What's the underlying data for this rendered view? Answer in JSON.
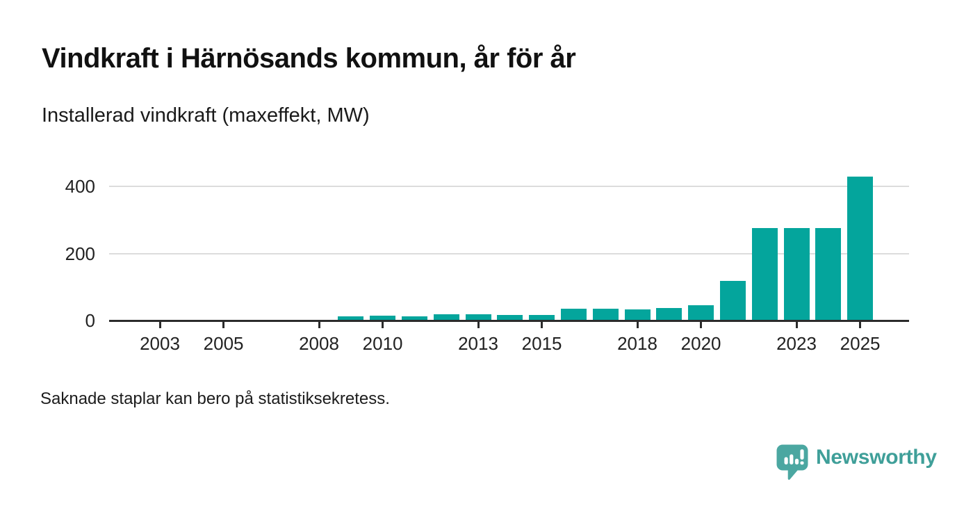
{
  "header": {
    "title": "Vindkraft i Härnösands kommun, år för år",
    "subtitle": "Installerad vindkraft (maxeffekt, MW)"
  },
  "chart_data": {
    "type": "bar",
    "title": "Vindkraft i Härnösands kommun, år för år",
    "subtitle": "Installerad vindkraft (maxeffekt, MW)",
    "unit": "MW",
    "bar_color": "#04a59c",
    "grid": "horizontal-only",
    "legend": "none",
    "x_range_years": [
      2002,
      2025
    ],
    "x_tick_years": [
      2003,
      2005,
      2008,
      2010,
      2013,
      2015,
      2018,
      2020,
      2023,
      2025
    ],
    "y_ticks": [
      0,
      200,
      400
    ],
    "ylim": [
      0,
      450
    ],
    "years_without_bars": [
      2002,
      2003,
      2004,
      2005,
      2006,
      2007,
      2008
    ],
    "series": [
      {
        "name": "Installerad vindkraft (maxeffekt, MW)",
        "points": [
          {
            "year": 2009,
            "value": 13
          },
          {
            "year": 2010,
            "value": 15
          },
          {
            "year": 2011,
            "value": 13
          },
          {
            "year": 2012,
            "value": 18
          },
          {
            "year": 2013,
            "value": 18
          },
          {
            "year": 2014,
            "value": 16
          },
          {
            "year": 2015,
            "value": 16
          },
          {
            "year": 2016,
            "value": 36
          },
          {
            "year": 2017,
            "value": 36
          },
          {
            "year": 2018,
            "value": 34
          },
          {
            "year": 2019,
            "value": 37
          },
          {
            "year": 2020,
            "value": 46
          },
          {
            "year": 2021,
            "value": 118
          },
          {
            "year": 2022,
            "value": 275
          },
          {
            "year": 2023,
            "value": 275
          },
          {
            "year": 2024,
            "value": 275
          },
          {
            "year": 2025,
            "value": 430
          }
        ]
      }
    ]
  },
  "footer": {
    "note": "Saknade staplar kan bero på statistiksekretess."
  },
  "branding": {
    "logo_text": "Newsworthy",
    "logo_text_color": "#3f9f99",
    "logo_icon_color": "#4ba7a1",
    "logo_icon": "newsworthy-speech-bubble-bar-chart-icon"
  }
}
